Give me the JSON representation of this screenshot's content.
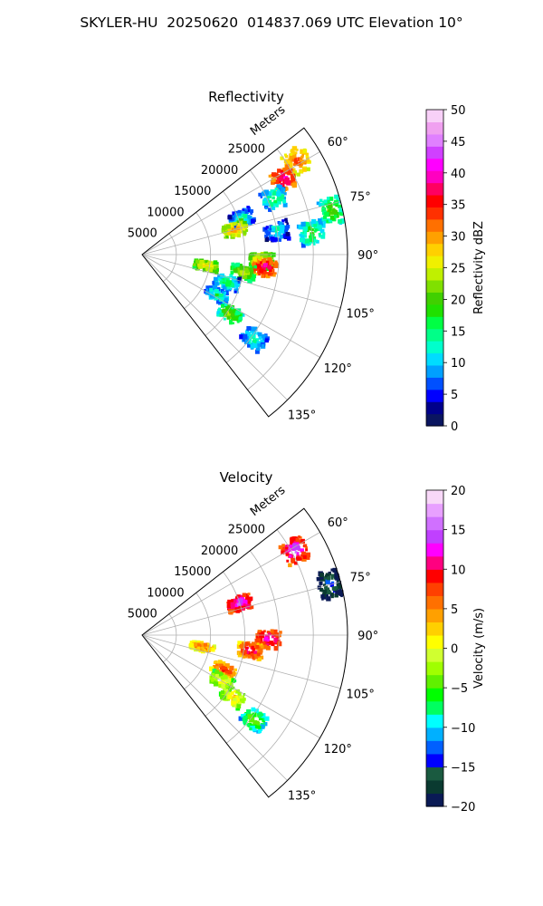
{
  "figure": {
    "suptitle": "SKYLER-HU  20250620  014837.069 UTC Elevation 10°"
  },
  "chart_data": [
    {
      "type": "heatmap",
      "title": "Reflectivity",
      "radial_label": "Meters",
      "range_ticks": [
        "5000",
        "10000",
        "15000",
        "20000",
        "25000"
      ],
      "range_tick_values": [
        5000,
        10000,
        15000,
        20000,
        25000
      ],
      "range_max": 30000,
      "azimuth_ticks": [
        "60°",
        "75°",
        "90°",
        "105°",
        "120°",
        "135°"
      ],
      "azimuth_tick_values": [
        60,
        75,
        90,
        105,
        120,
        135
      ],
      "azimuth_range": [
        52,
        142
      ],
      "grid": true,
      "colorbar": {
        "label": "Reflectivity dBZ",
        "vmin": 0,
        "vmax": 50,
        "ticks": [
          "0",
          "5",
          "10",
          "15",
          "20",
          "25",
          "30",
          "35",
          "40",
          "45",
          "50"
        ],
        "tick_values": [
          0,
          5,
          10,
          15,
          20,
          25,
          30,
          35,
          40,
          45,
          50
        ],
        "colors": [
          "#0a1560",
          "#00008b",
          "#0000ff",
          "#0050ff",
          "#00a0ff",
          "#00dcff",
          "#00ffcc",
          "#00ff88",
          "#00ff44",
          "#20e000",
          "#40d000",
          "#80e000",
          "#c0f000",
          "#f0f000",
          "#ffd000",
          "#ffa000",
          "#ff7000",
          "#ff3000",
          "#ff0000",
          "#ff0060",
          "#ff00c0",
          "#ff00ff",
          "#d040ff",
          "#e080ff",
          "#f0a0f0",
          "#f8d0f8"
        ]
      },
      "echo_cells": [
        {
          "az": 59,
          "r": 26500,
          "dbz": 35
        },
        {
          "az": 62,
          "r": 23500,
          "dbz": 40
        },
        {
          "az": 67,
          "r": 21000,
          "dbz": 18
        },
        {
          "az": 77,
          "r": 28500,
          "dbz": 22
        },
        {
          "az": 70,
          "r": 15500,
          "dbz": 16
        },
        {
          "az": 75,
          "r": 14000,
          "dbz": 32
        },
        {
          "az": 80,
          "r": 20000,
          "dbz": 14
        },
        {
          "az": 83,
          "r": 25000,
          "dbz": 20
        },
        {
          "az": 93,
          "r": 17500,
          "dbz": 30
        },
        {
          "az": 96,
          "r": 18000,
          "dbz": 40
        },
        {
          "az": 100,
          "r": 15000,
          "dbz": 26
        },
        {
          "az": 100,
          "r": 9500,
          "dbz": 30
        },
        {
          "az": 108,
          "r": 13000,
          "dbz": 18
        },
        {
          "az": 118,
          "r": 12500,
          "dbz": 17
        },
        {
          "az": 124,
          "r": 15500,
          "dbz": 24
        },
        {
          "az": 127,
          "r": 20500,
          "dbz": 16
        }
      ]
    },
    {
      "type": "heatmap",
      "title": "Velocity",
      "radial_label": "Meters",
      "range_ticks": [
        "5000",
        "10000",
        "15000",
        "20000",
        "25000"
      ],
      "range_tick_values": [
        5000,
        10000,
        15000,
        20000,
        25000
      ],
      "range_max": 30000,
      "azimuth_ticks": [
        "60°",
        "75°",
        "90°",
        "105°",
        "120°",
        "135°"
      ],
      "azimuth_tick_values": [
        60,
        75,
        90,
        105,
        120,
        135
      ],
      "azimuth_range": [
        52,
        142
      ],
      "grid": true,
      "colorbar": {
        "label": "Velocity (m/s)",
        "vmin": -20,
        "vmax": 20,
        "ticks": [
          "−20",
          "−15",
          "−10",
          "−5",
          "0",
          "5",
          "10",
          "15",
          "20"
        ],
        "tick_values": [
          -20,
          -15,
          -10,
          -5,
          0,
          5,
          10,
          15,
          20
        ],
        "colors": [
          "#0a1a55",
          "#0a3a30",
          "#1a5a40",
          "#0000ff",
          "#0060ff",
          "#00b0ff",
          "#00ffff",
          "#00ff60",
          "#00ff00",
          "#60f000",
          "#a0ff00",
          "#d0ff30",
          "#ffff00",
          "#ffd000",
          "#ffa000",
          "#ff7000",
          "#ff4000",
          "#ff0000",
          "#ff0080",
          "#ff00ff",
          "#c040ff",
          "#d070ff",
          "#e8a0ff",
          "#f8d8f8"
        ]
      },
      "echo_cells": [
        {
          "az": 61,
          "r": 25500,
          "ms": 15
        },
        {
          "az": 75,
          "r": 28500,
          "ms": -12
        },
        {
          "az": 72,
          "r": 15000,
          "ms": 16
        },
        {
          "az": 92,
          "r": 18500,
          "ms": 14
        },
        {
          "az": 98,
          "r": 16000,
          "ms": 12
        },
        {
          "az": 101,
          "r": 9000,
          "ms": 8
        },
        {
          "az": 113,
          "r": 13000,
          "ms": 10
        },
        {
          "az": 120,
          "r": 13500,
          "ms": 3
        },
        {
          "az": 124,
          "r": 16000,
          "ms": 4
        },
        {
          "az": 127,
          "r": 20500,
          "ms": -2
        }
      ]
    }
  ]
}
